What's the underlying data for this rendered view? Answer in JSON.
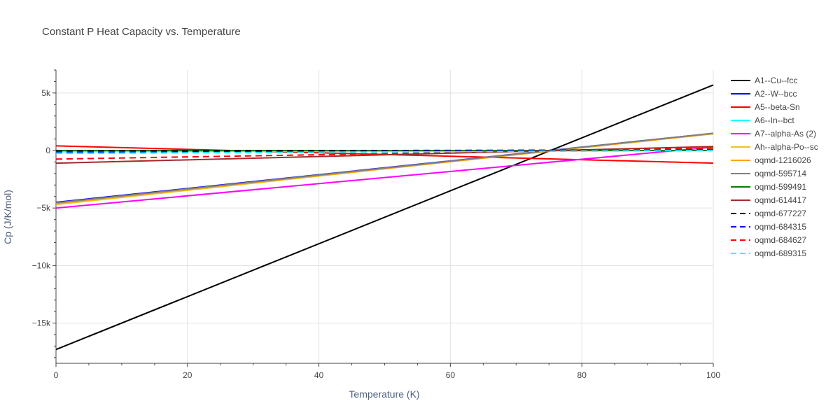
{
  "chart_data": {
    "type": "line",
    "title": "Constant P Heat Capacity vs. Temperature",
    "xlabel": "Temperature (K)",
    "ylabel": "Cp (J/K/mol)",
    "xlim": [
      0,
      100
    ],
    "ylim": [
      -18500,
      7000
    ],
    "xticks": [
      0,
      20,
      40,
      60,
      80,
      100
    ],
    "yticks": [
      {
        "value": 5000,
        "label": "5k"
      },
      {
        "value": 0,
        "label": "0"
      },
      {
        "value": -5000,
        "label": "−5k"
      },
      {
        "value": -10000,
        "label": "−10k"
      },
      {
        "value": -15000,
        "label": "−15k"
      }
    ],
    "grid": true,
    "legend_position": "right",
    "series": [
      {
        "name": "A1--Cu--fcc",
        "color": "#000000",
        "dash": "solid",
        "x": [
          0,
          100
        ],
        "y": [
          -17300,
          5700
        ]
      },
      {
        "name": "A2--W--bcc",
        "color": "#0000ff",
        "dash": "solid",
        "x": [
          0,
          100
        ],
        "y": [
          -4500,
          1500
        ]
      },
      {
        "name": "A5--beta-Sn",
        "color": "#ff0000",
        "dash": "solid",
        "x": [
          0,
          100
        ],
        "y": [
          400,
          -1100
        ]
      },
      {
        "name": "A6--In--bct",
        "color": "#00ffff",
        "dash": "solid",
        "x": [
          0,
          100
        ],
        "y": [
          -100,
          0
        ]
      },
      {
        "name": "A7--alpha-As (2)",
        "color": "#ff00ff",
        "dash": "solid",
        "x": [
          0,
          100
        ],
        "y": [
          -5000,
          300
        ]
      },
      {
        "name": "Ah--alpha-Po--sc",
        "color": "#f0c020",
        "dash": "solid",
        "x": [
          0,
          100
        ],
        "y": [
          -4700,
          1500
        ]
      },
      {
        "name": "oqmd-1216026",
        "color": "#ffa500",
        "dash": "solid",
        "x": [
          0,
          100
        ],
        "y": [
          -4600,
          1450
        ]
      },
      {
        "name": "oqmd-595714",
        "color": "#808080",
        "dash": "solid",
        "x": [
          0,
          100
        ],
        "y": [
          -4550,
          1500
        ]
      },
      {
        "name": "oqmd-599491",
        "color": "#008000",
        "dash": "solid",
        "x": [
          0,
          100
        ],
        "y": [
          0,
          0
        ]
      },
      {
        "name": "oqmd-614417",
        "color": "#a52a2a",
        "dash": "solid",
        "x": [
          0,
          100
        ],
        "y": [
          -1100,
          350
        ]
      },
      {
        "name": "oqmd-677227",
        "color": "#000000",
        "dash": "dash",
        "x": [
          0,
          100
        ],
        "y": [
          -50,
          50
        ]
      },
      {
        "name": "oqmd-684315",
        "color": "#0000ff",
        "dash": "dash",
        "x": [
          0,
          100
        ],
        "y": [
          -200,
          50
        ]
      },
      {
        "name": "oqmd-684627",
        "color": "#ff0000",
        "dash": "dash",
        "x": [
          0,
          100
        ],
        "y": [
          -750,
          200
        ]
      },
      {
        "name": "oqmd-689315",
        "color": "#00ffff",
        "dash": "dash",
        "x": [
          0,
          100
        ],
        "y": [
          -250,
          0
        ]
      }
    ]
  }
}
